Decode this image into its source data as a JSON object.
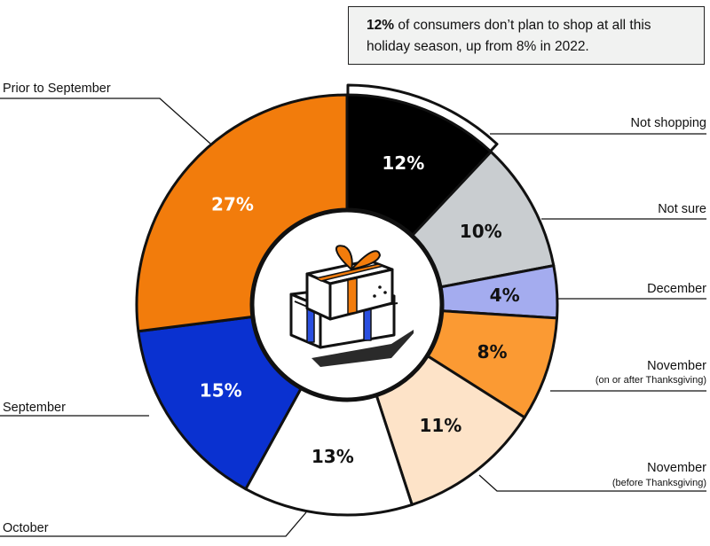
{
  "callout": {
    "highlight": "12%",
    "text": " of consumers don’t plan to shop at all this holiday season, up from 8% in 2022."
  },
  "chart_data": {
    "type": "pie",
    "title": "",
    "slices": [
      {
        "label": "Not shopping",
        "sublabel": "",
        "value": 12,
        "value_label": "12%",
        "color": "#000000",
        "text_color": "#ffffff"
      },
      {
        "label": "Not sure",
        "sublabel": "",
        "value": 10,
        "value_label": "10%",
        "color": "#c9cdd0",
        "text_color": "#111111"
      },
      {
        "label": "December",
        "sublabel": "",
        "value": 4,
        "value_label": "4%",
        "color": "#a4acef",
        "text_color": "#111111"
      },
      {
        "label": "November",
        "sublabel": "(on or after Thanksgiving)",
        "value": 8,
        "value_label": "8%",
        "color": "#fb9a33",
        "text_color": "#111111"
      },
      {
        "label": "November",
        "sublabel": "(before Thanksgiving)",
        "value": 11,
        "value_label": "11%",
        "color": "#fde3c8",
        "text_color": "#111111"
      },
      {
        "label": "October",
        "sublabel": "",
        "value": 13,
        "value_label": "13%",
        "color": "#ffffff",
        "text_color": "#111111"
      },
      {
        "label": "September",
        "sublabel": "",
        "value": 15,
        "value_label": "15%",
        "color": "#0a31d0",
        "text_color": "#ffffff"
      },
      {
        "label": "Prior to September",
        "sublabel": "",
        "value": 27,
        "value_label": "27%",
        "color": "#f27c0c",
        "text_color": "#ffffff"
      }
    ],
    "center_icon": "gift-boxes-icon",
    "highlighted_slice": "Not shopping"
  }
}
